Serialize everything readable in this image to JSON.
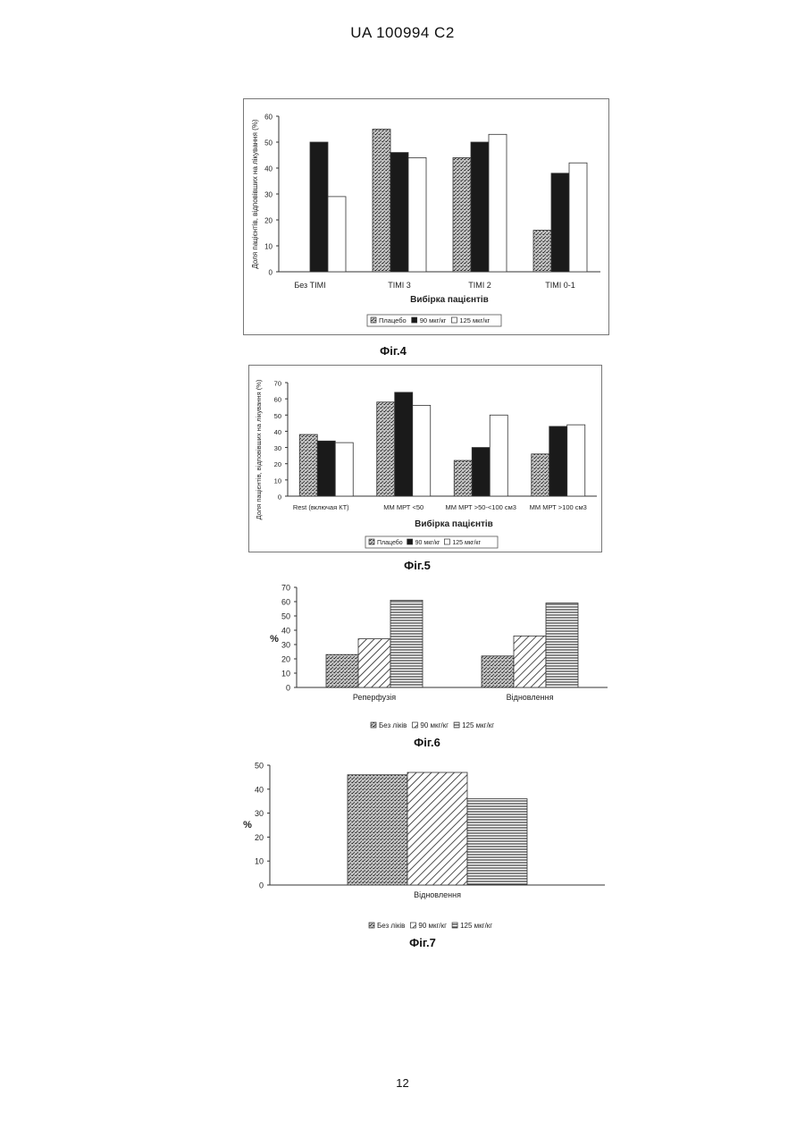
{
  "header": "UA   100994   C2",
  "page_number": "12",
  "chart_data": [
    {
      "id": "fig4",
      "type": "bar",
      "caption": "Фіг.4",
      "ylabel": "Доля пацієнтів, відповівших на лікування (%)",
      "xlabel": "Вибірка пацієнтів",
      "ylim": [
        0,
        60
      ],
      "yticks": [
        0,
        10,
        20,
        30,
        40,
        50,
        60
      ],
      "categories": [
        "Без  TIMI",
        "TIMI 3",
        "TIMI 2",
        "TIMI 0-1"
      ],
      "series": [
        {
          "name": "Плацебо",
          "values": [
            0,
            55,
            44,
            16
          ],
          "pattern": "stipple"
        },
        {
          "name": "90 мкг/кг",
          "values": [
            50,
            46,
            50,
            38
          ],
          "pattern": "solid"
        },
        {
          "name": "125 мкг/кг",
          "values": [
            29,
            44,
            53,
            42
          ],
          "pattern": "empty"
        }
      ],
      "legend_position": "bottom"
    },
    {
      "id": "fig5",
      "type": "bar",
      "caption": "Фіг.5",
      "ylabel": "Доля пацієнтів, відповівших на лікування (%)",
      "xlabel": "Вибірка пацієнтів",
      "ylim": [
        0,
        70
      ],
      "yticks": [
        0,
        10,
        20,
        30,
        40,
        50,
        60,
        70
      ],
      "categories": [
        "Rest (включая КТ)",
        "ММ МРТ <50",
        "ММ МРТ >50-<100 см3",
        "ММ МРТ >100 см3"
      ],
      "series": [
        {
          "name": "Плацебо",
          "values": [
            38,
            58,
            22,
            26
          ],
          "pattern": "stipple"
        },
        {
          "name": "90 мкг/кг",
          "values": [
            34,
            64,
            30,
            43
          ],
          "pattern": "solid"
        },
        {
          "name": "125 мкг/кг",
          "values": [
            33,
            56,
            50,
            44
          ],
          "pattern": "empty"
        }
      ],
      "legend_position": "bottom"
    },
    {
      "id": "fig6",
      "type": "bar",
      "caption": "Фіг.6",
      "ylabel": "%",
      "xlabel": "",
      "ylim": [
        0,
        70
      ],
      "yticks": [
        0,
        10,
        20,
        30,
        40,
        50,
        60,
        70
      ],
      "categories": [
        "Реперфузія",
        "Відновлення"
      ],
      "series": [
        {
          "name": "Без ліків",
          "values": [
            23,
            22
          ],
          "pattern": "stipple"
        },
        {
          "name": "90 мкг/кг",
          "values": [
            34,
            36
          ],
          "pattern": "diagonal"
        },
        {
          "name": "125 мкг/кг",
          "values": [
            61,
            59
          ],
          "pattern": "horizontal"
        }
      ],
      "legend_position": "bottom"
    },
    {
      "id": "fig7",
      "type": "bar",
      "caption": "Фіг.7",
      "ylabel": "%",
      "xlabel": "",
      "ylim": [
        0,
        50
      ],
      "yticks": [
        0,
        10,
        20,
        30,
        40,
        50
      ],
      "categories": [
        "Відновлення"
      ],
      "series": [
        {
          "name": "Без ліків",
          "values": [
            46
          ],
          "pattern": "stipple"
        },
        {
          "name": "90 мкг/кг",
          "values": [
            47
          ],
          "pattern": "diagonal"
        },
        {
          "name": "125 мкг/кг",
          "values": [
            36
          ],
          "pattern": "horizontal"
        }
      ],
      "legend_position": "bottom"
    }
  ]
}
